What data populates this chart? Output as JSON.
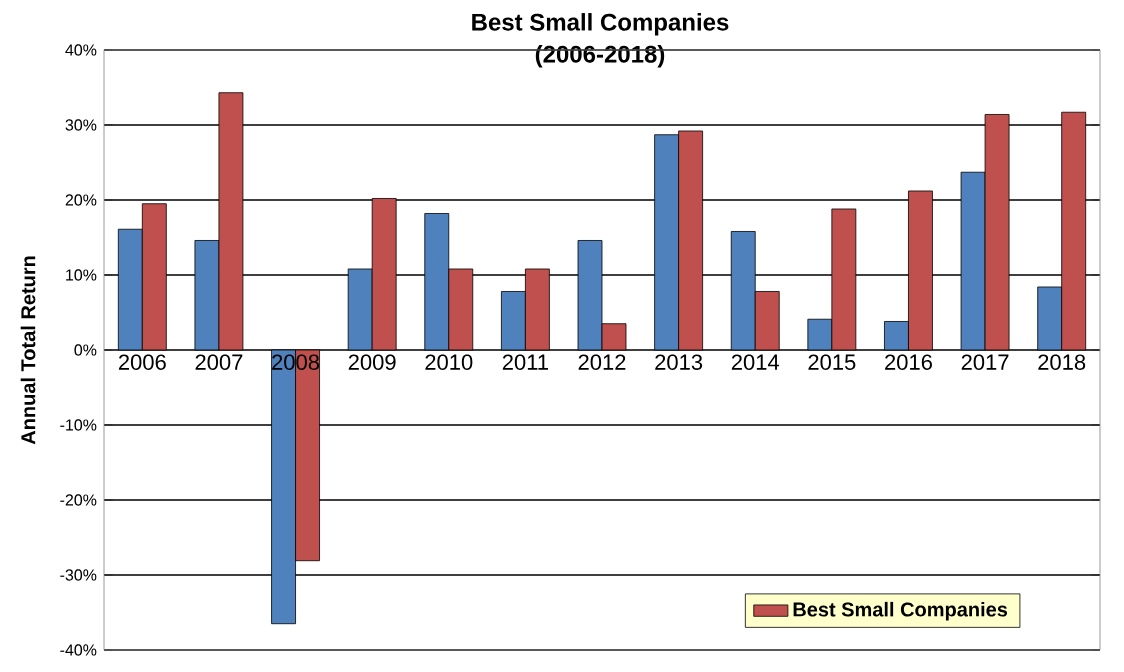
{
  "chart_data": {
    "type": "bar",
    "title": "Best Small Companies",
    "subtitle": "(2006-2018)",
    "ylabel": "Annual Total Return",
    "categories": [
      "2006",
      "2007",
      "2008",
      "2009",
      "2010",
      "2011",
      "2012",
      "2013",
      "2014",
      "2015",
      "2016",
      "2017",
      "2018"
    ],
    "series": [
      {
        "color": "#4f81bd",
        "values": [
          16.1,
          14.6,
          -36.5,
          10.8,
          18.2,
          7.8,
          14.6,
          28.7,
          15.8,
          4.1,
          3.8,
          23.7,
          8.4
        ]
      },
      {
        "name": "Best Small Companies",
        "color": "#c0504d",
        "values": [
          19.5,
          34.3,
          -28.1,
          20.2,
          10.8,
          10.8,
          3.5,
          29.2,
          7.8,
          18.8,
          21.2,
          31.4,
          31.7
        ]
      }
    ],
    "ylim": [
      -40,
      40
    ],
    "yticks": [
      {
        "value": -40,
        "label": "-40%"
      },
      {
        "value": -30,
        "label": "-30%"
      },
      {
        "value": -20,
        "label": "-20%"
      },
      {
        "value": -10,
        "label": "-10%"
      },
      {
        "value": 0,
        "label": "0%"
      },
      {
        "value": 10,
        "label": "10%"
      },
      {
        "value": 20,
        "label": "20%"
      },
      {
        "value": 30,
        "label": "30%"
      },
      {
        "value": 40,
        "label": "40%"
      }
    ],
    "grid": "y",
    "legend": "bottom right"
  }
}
